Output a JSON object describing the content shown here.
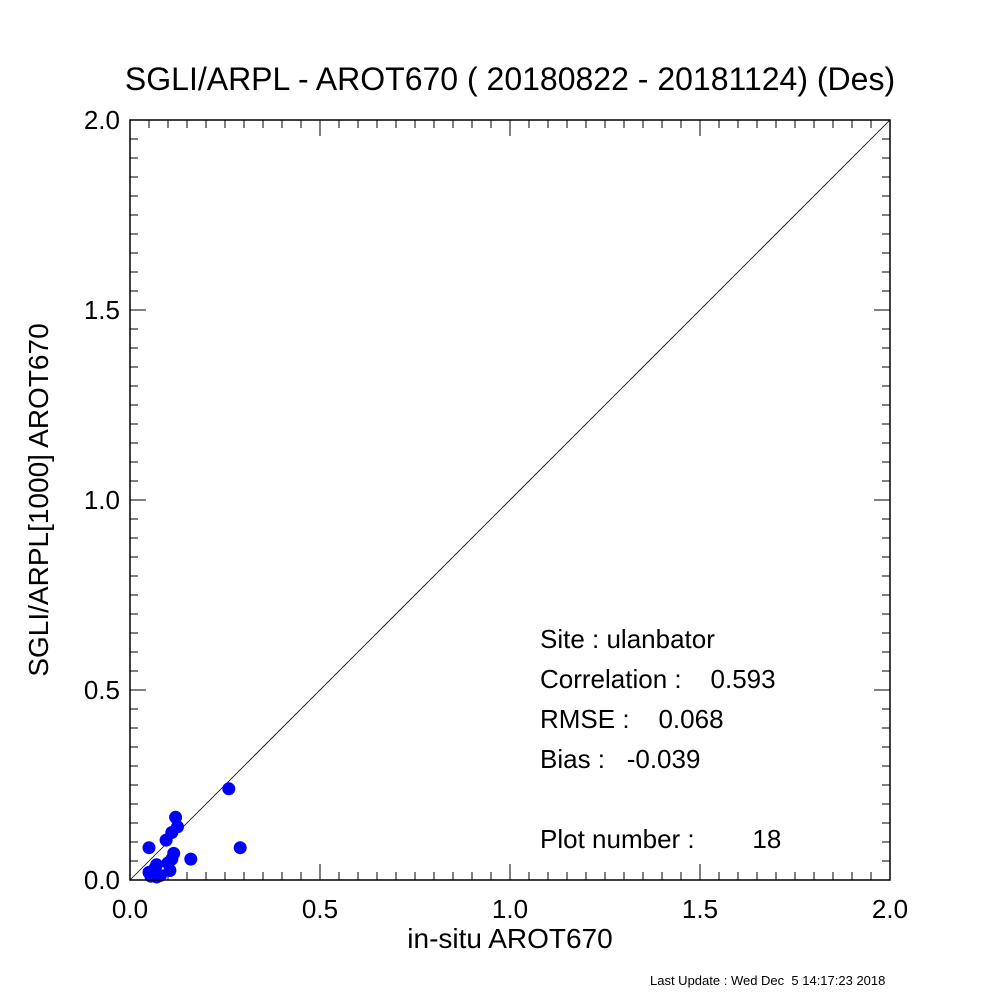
{
  "chart_data": {
    "type": "scatter",
    "title": "SGLI/ARPL - AROT670 ( 20180822 - 20181124) (Des)",
    "xlabel": "in-situ AROT670",
    "ylabel": "SGLI/ARPL[1000]    AROT670",
    "xlim": [
      0.0,
      2.0
    ],
    "ylim": [
      0.0,
      2.0
    ],
    "x_ticks": [
      "0.0",
      "0.5",
      "1.0",
      "1.5",
      "2.0"
    ],
    "y_ticks": [
      "0.0",
      "0.5",
      "1.0",
      "1.5",
      "2.0"
    ],
    "grid": false,
    "reference_line": "1:1",
    "point_color": "#0000ff",
    "points": [
      {
        "x": 0.26,
        "y": 0.24
      },
      {
        "x": 0.29,
        "y": 0.085
      },
      {
        "x": 0.16,
        "y": 0.055
      },
      {
        "x": 0.12,
        "y": 0.165
      },
      {
        "x": 0.125,
        "y": 0.14
      },
      {
        "x": 0.11,
        "y": 0.125
      },
      {
        "x": 0.095,
        "y": 0.105
      },
      {
        "x": 0.115,
        "y": 0.07
      },
      {
        "x": 0.11,
        "y": 0.055
      },
      {
        "x": 0.1,
        "y": 0.045
      },
      {
        "x": 0.105,
        "y": 0.025
      },
      {
        "x": 0.05,
        "y": 0.085
      },
      {
        "x": 0.07,
        "y": 0.04
      },
      {
        "x": 0.065,
        "y": 0.03
      },
      {
        "x": 0.05,
        "y": 0.02
      },
      {
        "x": 0.055,
        "y": 0.01
      },
      {
        "x": 0.07,
        "y": 0.008
      },
      {
        "x": 0.08,
        "y": 0.012
      }
    ],
    "annotations": {
      "site": "Site : ulanbator",
      "correlation": "Correlation :    0.593",
      "rmse": "RMSE :    0.068",
      "bias": "Bias :   -0.039",
      "plot_number": "Plot number :        18"
    }
  },
  "footer": "Last Update : Wed Dec  5 14:17:23 2018"
}
